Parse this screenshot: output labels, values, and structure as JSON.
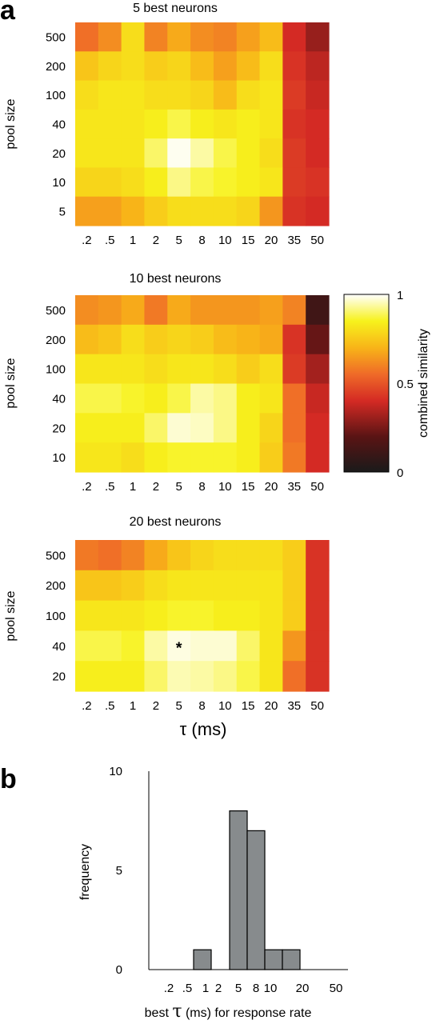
{
  "panels": {
    "a": "a",
    "b": "b"
  },
  "colormap": {
    "stops": [
      [
        0.0,
        "#1a1a1a"
      ],
      [
        0.2,
        "#5a1414"
      ],
      [
        0.4,
        "#d42a24"
      ],
      [
        0.55,
        "#ef6a28"
      ],
      [
        0.7,
        "#f8b418"
      ],
      [
        0.85,
        "#f7f21c"
      ],
      [
        1.0,
        "#ffffff"
      ]
    ]
  },
  "chart_data": [
    {
      "type": "heatmap",
      "title": "5 best neurons",
      "ylabel": "pool size",
      "xlabel": "",
      "x_categories": [
        ".2",
        ".5",
        "1",
        "2",
        "5",
        "8",
        "10",
        "15",
        "20",
        "35",
        "50"
      ],
      "y_categories": [
        "500",
        "200",
        "100",
        "40",
        "20",
        "10",
        "5"
      ],
      "values": [
        [
          0.56,
          0.62,
          0.8,
          0.6,
          0.68,
          0.62,
          0.6,
          0.66,
          0.72,
          0.4,
          0.3
        ],
        [
          0.74,
          0.78,
          0.8,
          0.76,
          0.78,
          0.72,
          0.66,
          0.72,
          0.8,
          0.42,
          0.36
        ],
        [
          0.8,
          0.82,
          0.82,
          0.8,
          0.8,
          0.78,
          0.72,
          0.8,
          0.82,
          0.44,
          0.38
        ],
        [
          0.82,
          0.82,
          0.82,
          0.84,
          0.88,
          0.84,
          0.82,
          0.84,
          0.82,
          0.42,
          0.4
        ],
        [
          0.82,
          0.82,
          0.82,
          0.9,
          0.99,
          0.94,
          0.88,
          0.84,
          0.8,
          0.44,
          0.4
        ],
        [
          0.78,
          0.78,
          0.8,
          0.84,
          0.92,
          0.88,
          0.86,
          0.84,
          0.82,
          0.44,
          0.42
        ],
        [
          0.66,
          0.66,
          0.7,
          0.76,
          0.8,
          0.8,
          0.8,
          0.78,
          0.64,
          0.42,
          0.4
        ]
      ]
    },
    {
      "type": "heatmap",
      "title": "10 best neurons",
      "ylabel": "pool size",
      "xlabel": "",
      "x_categories": [
        ".2",
        ".5",
        "1",
        "2",
        "5",
        "8",
        "10",
        "15",
        "20",
        "35",
        "50"
      ],
      "y_categories": [
        "500",
        "200",
        "100",
        "40",
        "20",
        "10"
      ],
      "values": [
        [
          0.62,
          0.64,
          0.68,
          0.58,
          0.68,
          0.64,
          0.64,
          0.64,
          0.66,
          0.6,
          0.12
        ],
        [
          0.72,
          0.74,
          0.8,
          0.76,
          0.78,
          0.76,
          0.72,
          0.7,
          0.68,
          0.42,
          0.22
        ],
        [
          0.82,
          0.82,
          0.82,
          0.8,
          0.82,
          0.82,
          0.8,
          0.76,
          0.8,
          0.44,
          0.32
        ],
        [
          0.88,
          0.88,
          0.86,
          0.84,
          0.88,
          0.94,
          0.92,
          0.84,
          0.82,
          0.56,
          0.38
        ],
        [
          0.84,
          0.84,
          0.84,
          0.9,
          0.97,
          0.96,
          0.92,
          0.84,
          0.78,
          0.56,
          0.4
        ],
        [
          0.82,
          0.82,
          0.8,
          0.84,
          0.86,
          0.86,
          0.86,
          0.84,
          0.76,
          0.58,
          0.4
        ]
      ]
    },
    {
      "type": "heatmap",
      "title": "20 best neurons",
      "ylabel": "pool size",
      "xlabel": "τ (ms)",
      "x_categories": [
        ".2",
        ".5",
        "1",
        "2",
        "5",
        "8",
        "10",
        "15",
        "20",
        "35",
        "50"
      ],
      "y_categories": [
        "500",
        "200",
        "100",
        "40",
        "20"
      ],
      "values": [
        [
          0.58,
          0.56,
          0.6,
          0.68,
          0.74,
          0.78,
          0.8,
          0.8,
          0.8,
          0.76,
          0.42
        ],
        [
          0.74,
          0.74,
          0.76,
          0.8,
          0.82,
          0.82,
          0.82,
          0.82,
          0.82,
          0.76,
          0.42
        ],
        [
          0.82,
          0.82,
          0.82,
          0.84,
          0.86,
          0.86,
          0.84,
          0.84,
          0.82,
          0.76,
          0.42
        ],
        [
          0.88,
          0.88,
          0.86,
          0.94,
          0.98,
          0.97,
          0.97,
          0.9,
          0.82,
          0.64,
          0.42
        ],
        [
          0.84,
          0.84,
          0.84,
          0.9,
          0.95,
          0.94,
          0.92,
          0.88,
          0.82,
          0.56,
          0.42
        ]
      ],
      "annotation": {
        "text": "*",
        "x": "5",
        "y": "40"
      }
    },
    {
      "type": "colorbar",
      "label": "combined similarity",
      "ticks": [
        "0",
        "0.5",
        "1"
      ],
      "range": [
        0,
        1
      ]
    },
    {
      "type": "bar",
      "xlabel_prefix": "best ",
      "xlabel_symbol": "τ",
      "xlabel_suffix": " (ms) for response rate",
      "ylabel": "frequency",
      "categories": [
        ".2",
        ".5",
        "1",
        "2",
        "5",
        "8",
        "10",
        "20",
        "50"
      ],
      "x_ticks": [
        ".2",
        ".5",
        "1",
        "2",
        "5",
        "8",
        "10",
        "20",
        "50"
      ],
      "y_ticks": [
        "0",
        "5",
        "10"
      ],
      "ylim": [
        0,
        10
      ],
      "bins": [
        {
          "label": "1",
          "value": 1
        },
        {
          "label": "2",
          "value": 0
        },
        {
          "label": "5",
          "value": 8
        },
        {
          "label": "8",
          "value": 7
        },
        {
          "label": "10",
          "value": 1
        },
        {
          "label": "15",
          "value": 1
        }
      ],
      "bar_color": "#878b8d"
    }
  ]
}
